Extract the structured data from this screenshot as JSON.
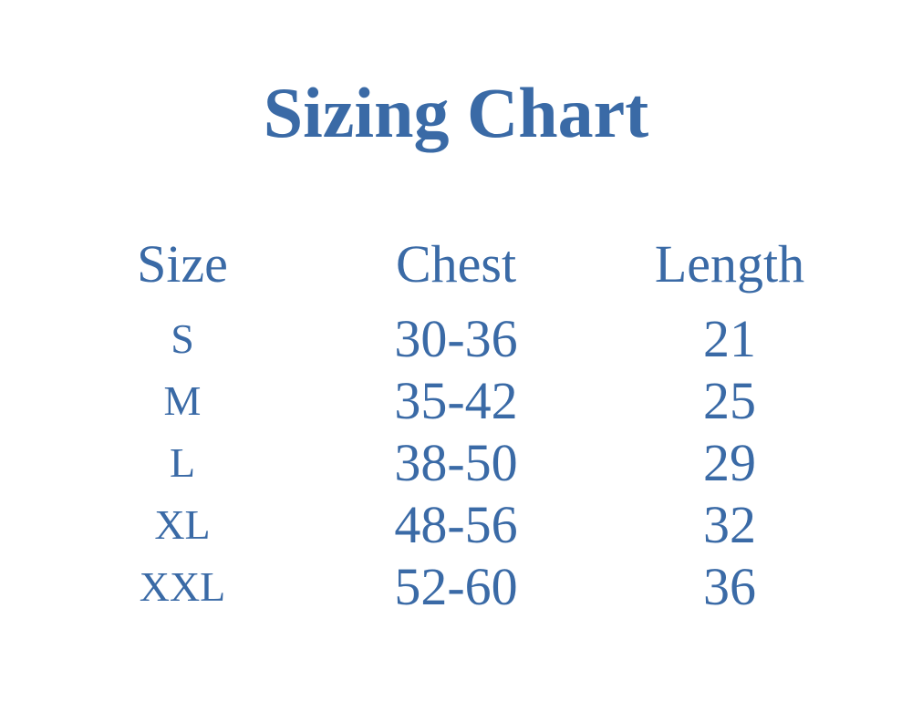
{
  "title": "Sizing Chart",
  "color": "#3a6aa6",
  "columns": [
    "Size",
    "Chest",
    "Length"
  ],
  "rows": [
    [
      "S",
      "30-36",
      "21"
    ],
    [
      "M",
      "35-42",
      "25"
    ],
    [
      "L",
      "38-50",
      "29"
    ],
    [
      "XL",
      "48-56",
      "32"
    ],
    [
      "XXL",
      "52-60",
      "36"
    ]
  ]
}
